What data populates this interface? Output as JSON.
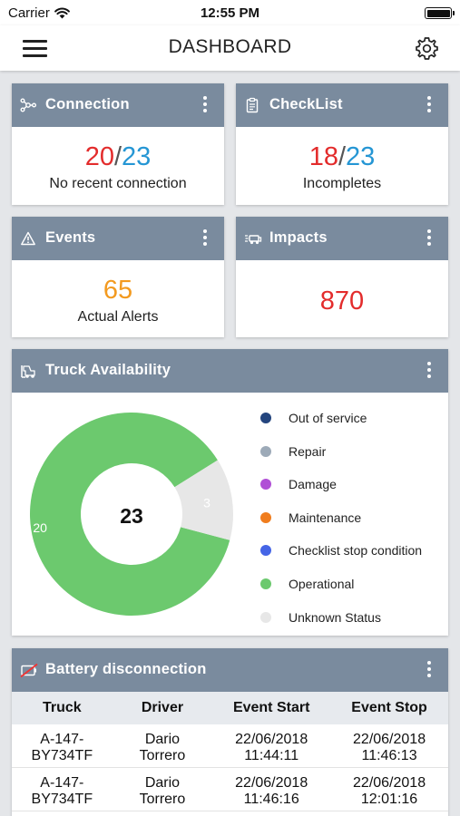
{
  "status_bar": {
    "carrier": "Carrier",
    "time": "12:55 PM"
  },
  "nav": {
    "title": "DASHBOARD",
    "menu_icon": "hamburger-icon",
    "settings_icon": "gear-icon"
  },
  "cards": {
    "connection": {
      "title": "Connection",
      "value_a": "20",
      "sep": "/",
      "value_b": "23",
      "subtitle": "No recent connection"
    },
    "checklist": {
      "title": "CheckList",
      "value_a": "18",
      "sep": "/",
      "value_b": "23",
      "subtitle": "Incompletes"
    },
    "events": {
      "title": "Events",
      "value": "65",
      "subtitle": "Actual Alerts"
    },
    "impacts": {
      "title": "Impacts",
      "value": "870"
    },
    "truck_availability": {
      "title": "Truck Availability"
    },
    "battery": {
      "title": "Battery disconnection"
    }
  },
  "colors": {
    "header": "#7a8b9e",
    "red": "#e32c2c",
    "blue": "#2596d4",
    "orange": "#f39a1f"
  },
  "chart_data": {
    "type": "pie",
    "center_label": "23",
    "slices": [
      {
        "label": "Operational",
        "value": 20,
        "color": "#6cc96e"
      },
      {
        "label": "Unknown Status",
        "value": 3,
        "color": "#e7e7e7"
      }
    ],
    "legend": [
      {
        "label": "Out of service",
        "color": "#24457e"
      },
      {
        "label": "Repair",
        "color": "#9daab8"
      },
      {
        "label": "Damage",
        "color": "#b04fd6"
      },
      {
        "label": "Maintenance",
        "color": "#f07d1e"
      },
      {
        "label": "Checklist stop condition",
        "color": "#4565e6"
      },
      {
        "label": "Operational",
        "color": "#6cc96e"
      },
      {
        "label": "Unknown Status",
        "color": "#e7e7e7"
      }
    ]
  },
  "battery_table": {
    "headers": [
      "Truck",
      "Driver",
      "Event Start",
      "Event Stop"
    ],
    "rows": [
      {
        "truck": [
          "A-147-",
          "BY734TF"
        ],
        "driver": [
          "Dario",
          "Torrero"
        ],
        "start": [
          "22/06/2018",
          "11:44:11"
        ],
        "stop": [
          "22/06/2018",
          "11:46:13"
        ]
      },
      {
        "truck": [
          "A-147-",
          "BY734TF"
        ],
        "driver": [
          "Dario",
          "Torrero"
        ],
        "start": [
          "22/06/2018",
          "11:46:16"
        ],
        "stop": [
          "22/06/2018",
          "12:01:16"
        ]
      }
    ]
  }
}
